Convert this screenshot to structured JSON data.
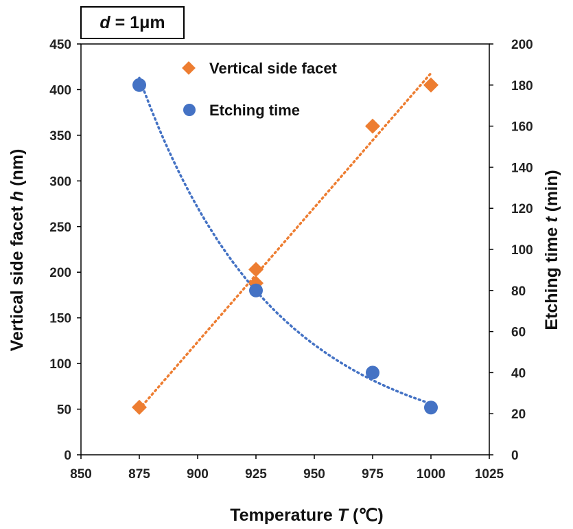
{
  "chart_data": {
    "type": "scatter",
    "annotation": {
      "var": "d",
      "rest": " = 1μm"
    },
    "x": {
      "label": "Temperature",
      "var": "T",
      "unit": " (℃)",
      "lim": [
        850,
        1025
      ],
      "ticks": [
        850,
        875,
        900,
        925,
        950,
        975,
        1000,
        1025
      ]
    },
    "y_left": {
      "label": "Vertical side facet",
      "var": "h",
      "unit": " (nm)",
      "lim": [
        0,
        450
      ],
      "ticks": [
        0,
        50,
        100,
        150,
        200,
        250,
        300,
        350,
        400,
        450
      ]
    },
    "y_right": {
      "label": "Etching time",
      "var": "t",
      "unit": " (min)",
      "lim": [
        0,
        200
      ],
      "ticks": [
        0,
        20,
        40,
        60,
        80,
        100,
        120,
        140,
        160,
        180,
        200
      ]
    },
    "series": [
      {
        "name": "Vertical side facet",
        "axis": "left",
        "marker": "diamond",
        "color": "#ED7D31",
        "points": [
          [
            875,
            52
          ],
          [
            925,
            188
          ],
          [
            925,
            203
          ],
          [
            975,
            360
          ],
          [
            1000,
            405
          ]
        ],
        "trend": {
          "type": "linear",
          "from": [
            875,
            50
          ],
          "to": [
            1000,
            418
          ]
        }
      },
      {
        "name": "Etching time",
        "axis": "right",
        "marker": "circle",
        "color": "#4472C4",
        "points": [
          [
            875,
            180
          ],
          [
            925,
            80
          ],
          [
            975,
            40
          ],
          [
            1000,
            23
          ]
        ],
        "trend": {
          "type": "power",
          "points": [
            [
              875,
              180
            ],
            [
              925,
              80
            ],
            [
              975,
              40
            ],
            [
              1000,
              23
            ]
          ]
        }
      }
    ],
    "legend_position": "top-center"
  }
}
